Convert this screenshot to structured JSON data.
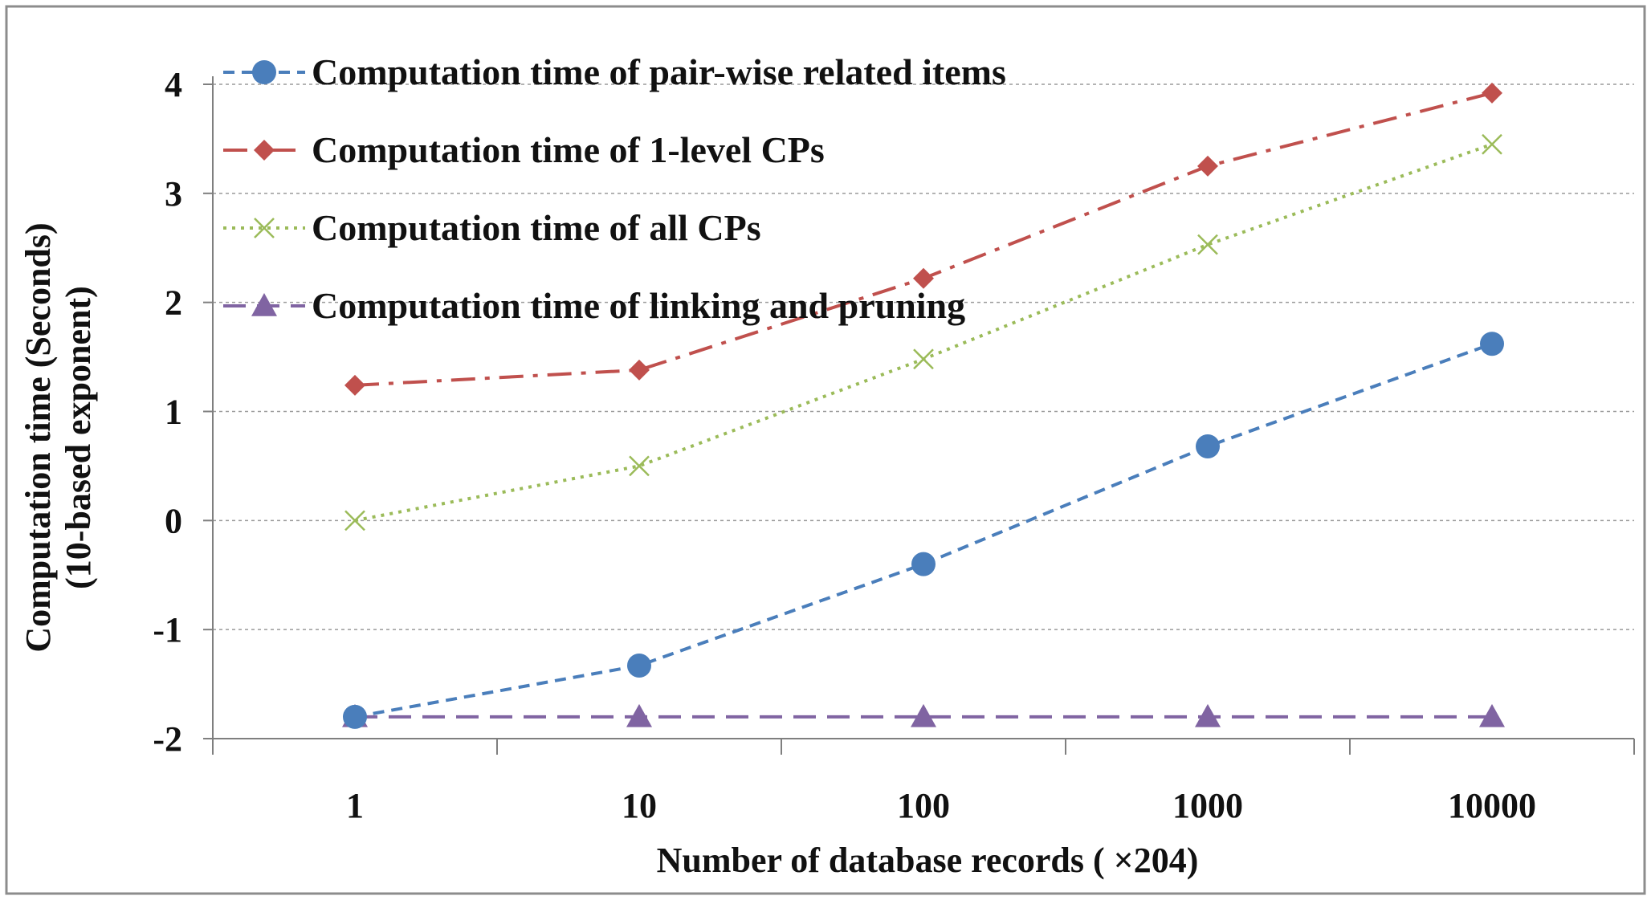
{
  "chart_data": {
    "type": "line",
    "x": [
      "1",
      "10",
      "100",
      "1000",
      "10000"
    ],
    "xlabel": "Number of database records ( ×204)",
    "ylabel_line1": "Computation time (Seconds)",
    "ylabel_line2": "(10-based exponent)",
    "ylim": [
      -2,
      4
    ],
    "yticks": [
      "-2",
      "-1",
      "0",
      "1",
      "2",
      "3",
      "4"
    ],
    "grid": "horizontal-dashed",
    "legend": "top-left",
    "series": [
      {
        "name": "Computation time of pair-wise related items",
        "values": [
          -1.8,
          -1.33,
          -0.4,
          0.68,
          1.62
        ],
        "color": "#4a7ebb",
        "marker": "circle",
        "dash": "dashed"
      },
      {
        "name": "Computation time of 1-level CPs",
        "values": [
          1.24,
          1.38,
          2.22,
          3.25,
          3.92
        ],
        "color": "#c0504d",
        "marker": "diamond",
        "dash": "dash-dot"
      },
      {
        "name": "Computation time of all CPs",
        "values": [
          0.0,
          0.5,
          1.48,
          2.53,
          3.45
        ],
        "color": "#9bbb59",
        "marker": "x",
        "dash": "dotted"
      },
      {
        "name": "Computation time of linking and pruning",
        "values": [
          -1.8,
          -1.8,
          -1.8,
          -1.8,
          -1.8
        ],
        "color": "#8064a2",
        "marker": "triangle",
        "dash": "long-dash"
      }
    ]
  }
}
